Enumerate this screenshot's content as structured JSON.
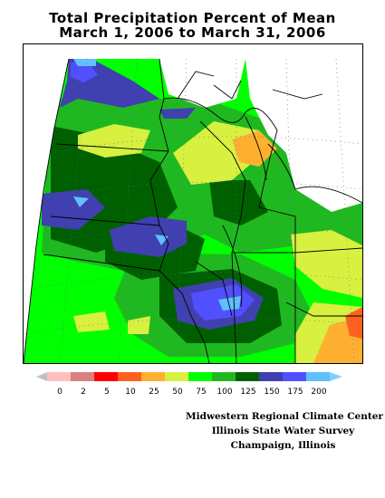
{
  "title": {
    "line1": "Total Precipitation Percent of Mean",
    "line2": "March 1, 2006 to March 31, 2006"
  },
  "legend": {
    "labels": [
      "0",
      "2",
      "5",
      "10",
      "25",
      "50",
      "75",
      "100",
      "125",
      "150",
      "175",
      "200"
    ],
    "colors": [
      "#ffc0c0",
      "#d88080",
      "#ff0000",
      "#ff6020",
      "#ffb030",
      "#d8f040",
      "#00ff00",
      "#20b820",
      "#006000",
      "#4040b0",
      "#5050ff",
      "#60c0ff"
    ],
    "below_color": "#c0c0c0",
    "above_color": "#80d0ff"
  },
  "credits": {
    "line1": "Midwestern Regional Climate Center",
    "line2": "Illinois State Water Survey",
    "line3": "Champaign, Illinois"
  }
}
